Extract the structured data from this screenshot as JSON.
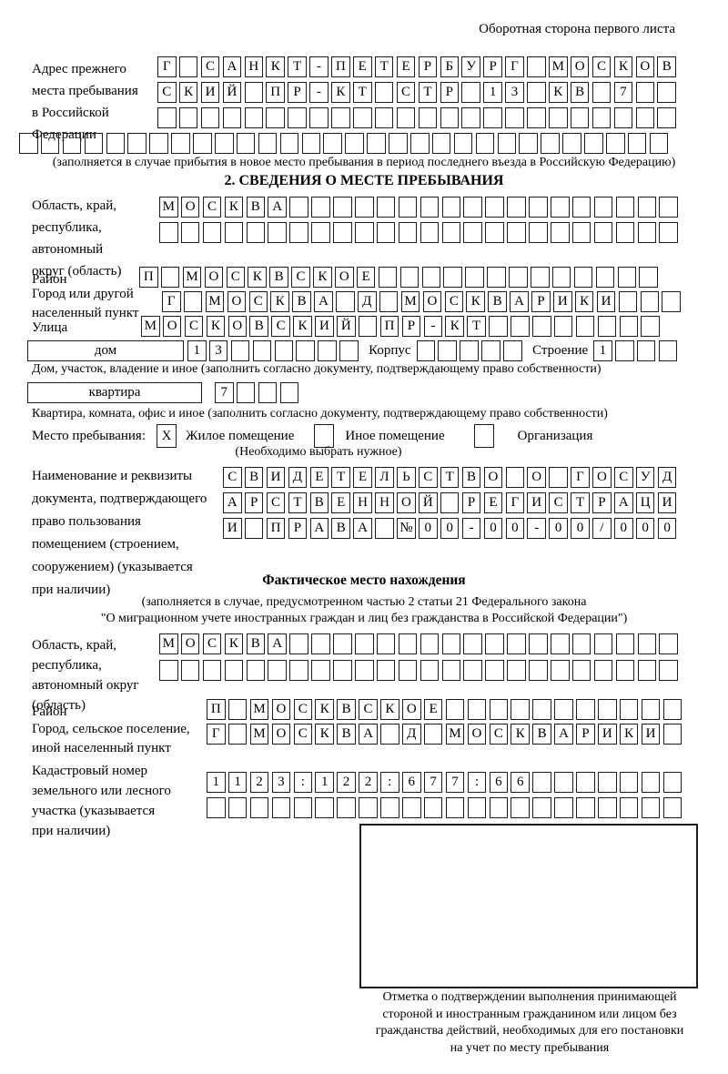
{
  "colors": {
    "ink": "#1c1c1c",
    "paper": "#ffffff"
  },
  "page": {
    "header_note": "Оборотная сторона первого листа"
  },
  "prev_address": {
    "label": "Адрес прежнего\nместа пребывания\nв Российской\nФедерации",
    "rows": [
      "Г САНКТ-ПЕТЕРБУРГ МОСКОВ",
      "СКИЙ ПР-КТ СТР 13 КВ 7  ",
      "                        "
    ],
    "row_full": "                              ",
    "note": "(заполняется в случае прибытия в новое место пребывания в период последнего въезда в Российскую Федерацию)"
  },
  "section2": {
    "title": "2. СВЕДЕНИЯ О МЕСТЕ ПРЕБЫВАНИЯ",
    "region": {
      "label": "Область, край,\nреспублика,\nавтономный\nокруг (область)",
      "rows": [
        "МОСКВА                  ",
        "                        "
      ]
    },
    "district": {
      "label": "Район",
      "cells": "П МОСКВСКОЕ             "
    },
    "city": {
      "label": "Город или другой\nнаселенный пункт",
      "cells": "Г МОСКВА Д МОСКВАРИКИ   "
    },
    "street": {
      "label": "Улица",
      "cells": "МОСКОВСКИЙ ПР-КТ        "
    },
    "house": {
      "box_label": "дом",
      "cells": "13      ",
      "korpus_label": "Корпус",
      "korpus_cells": "     ",
      "stroenie_label": "Строение",
      "stroenie_cells": "1   ",
      "caption": "Дом, участок, владение и иное (заполнить согласно документу, подтверждающему право собственности)"
    },
    "apartment": {
      "box_label": "квартира",
      "cells": "7   ",
      "caption": "Квартира, комната, офис и иное (заполнить согласно документу, подтверждающему право собственности)"
    },
    "stay_type": {
      "label": "Место пребывания:",
      "options": [
        {
          "label": "Жилое помещение",
          "mark": "X"
        },
        {
          "label": "Иное помещение",
          "mark": ""
        },
        {
          "label": "Организация",
          "mark": ""
        }
      ],
      "note": "(Необходимо выбрать нужное)"
    },
    "doc": {
      "label": "Наименование и реквизиты\nдокумента, подтверждающего\nправо пользования\nпомещением (строением,\nсооружением) (указывается\nпри наличии)",
      "rows": [
        "СВИДЕТЕЛЬСТВО О ГОСУД",
        "АРСТВЕННОЙ РЕГИСТРАЦИ",
        "И ПРАВА №00-00-00/000"
      ]
    }
  },
  "actual_location": {
    "title": "Фактическое место нахождения",
    "note_line1": "(заполняется в случае, предусмотренном частью 2 статьи 21 Федерального закона",
    "note_line2": "\"О миграционном учете иностранных граждан и лиц без гражданства в Российской Федерации\")",
    "region": {
      "label": "Область, край,\nреспублика,\nавтономный округ\n(область)",
      "rows": [
        "МОСКВА                  ",
        "                        "
      ]
    },
    "district": {
      "label": "Район",
      "cells": "П МОСКВСКОЕ           "
    },
    "city": {
      "label": "Город, сельское поселение,\nиной населенный пункт",
      "cells": "Г МОСКВА Д МОСКВАРИКИ "
    },
    "cadastral": {
      "label": "Кадастровый номер\nземельного или лесного\nучастка (указывается\nпри наличии)",
      "rows": [
        "1123:122:677:66       ",
        "                      "
      ]
    },
    "stamp_caption": "Отметка о подтверждении выполнения принимающей\nстороной и иностранным гражданином или лицом без\nгражданства действий, необходимых для его постановки\nна учет по месту пребывания"
  }
}
